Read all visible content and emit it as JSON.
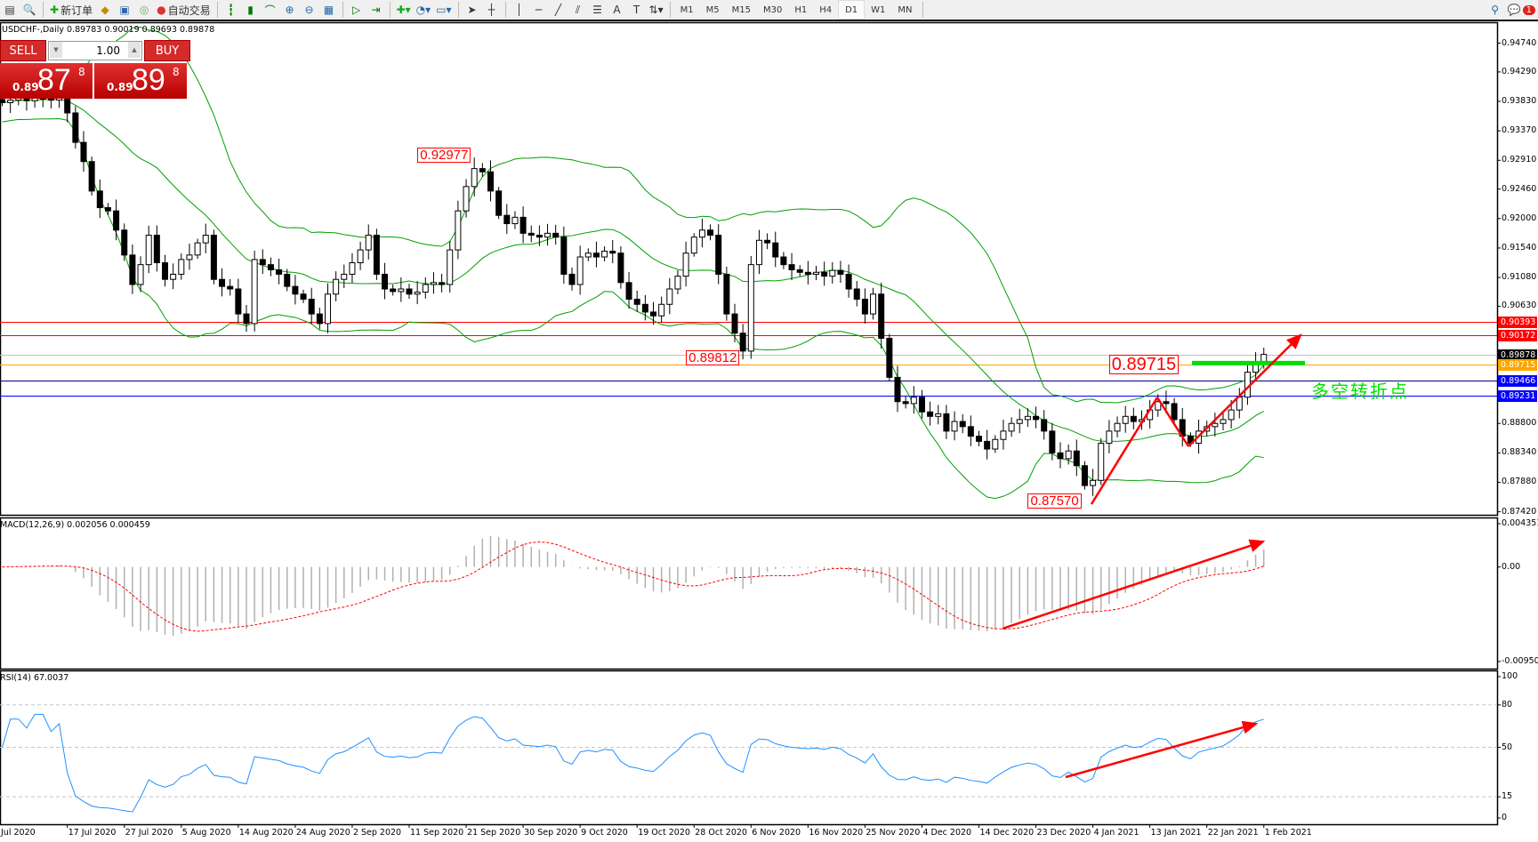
{
  "toolbar": {
    "new_order": "新订单",
    "auto_trading": "自动交易",
    "timeframes": [
      "M1",
      "M5",
      "M15",
      "M30",
      "H1",
      "H4",
      "D1",
      "W1",
      "MN"
    ],
    "active_timeframe": "D1",
    "notification_count": "1"
  },
  "chart": {
    "title": "USDCHF-,Daily 0.89783 0.90019 0.89693 0.89878"
  },
  "trade_panel": {
    "sell": "SELL",
    "buy": "BUY",
    "volume": "1.00",
    "sell_prefix": "0.89",
    "sell_big": "87",
    "sell_sup": "8",
    "buy_prefix": "0.89",
    "buy_big": "89",
    "buy_sup": "8"
  },
  "colors": {
    "bull": "#ffffff",
    "bear": "#000000",
    "bands": "#00a000",
    "macd_hist": "#b0b0b0",
    "macd_signal": "#ff0000",
    "rsi": "#1e90ff",
    "arrow": "#ff0000"
  },
  "chart_data": {
    "type": "candlestick",
    "symbol": "USDCHF-",
    "timeframe": "Daily",
    "price_ticks": [
      "0.94740",
      "0.94290",
      "0.93830",
      "0.93370",
      "0.92910",
      "0.92460",
      "0.92000",
      "0.91540",
      "0.91080",
      "0.90630",
      "0.88800",
      "0.88340",
      "0.87880",
      "0.87420"
    ],
    "ylim": [
      0.8742,
      0.9474
    ],
    "close": [
      0.9381,
      0.9385,
      0.9388,
      0.9384,
      0.9388,
      0.9388,
      0.9385,
      0.9388,
      0.9365,
      0.9319,
      0.9289,
      0.9243,
      0.9217,
      0.9212,
      0.9182,
      0.9143,
      0.9097,
      0.9128,
      0.9174,
      0.9131,
      0.9105,
      0.9113,
      0.9136,
      0.9143,
      0.9162,
      0.9174,
      0.9105,
      0.9094,
      0.909,
      0.9051,
      0.9036,
      0.9136,
      0.9128,
      0.912,
      0.9113,
      0.9094,
      0.9082,
      0.9074,
      0.9051,
      0.9036,
      0.9082,
      0.9105,
      0.9113,
      0.9131,
      0.9151,
      0.9174,
      0.9113,
      0.909,
      0.9086,
      0.909,
      0.9082,
      0.9085,
      0.9097,
      0.91,
      0.9097,
      0.9151,
      0.9212,
      0.925,
      0.9278,
      0.9273,
      0.9243,
      0.9205,
      0.9192,
      0.9202,
      0.9177,
      0.9174,
      0.9171,
      0.9177,
      0.9171,
      0.9113,
      0.9097,
      0.914,
      0.9146,
      0.914,
      0.9149,
      0.9146,
      0.91,
      0.9074,
      0.9066,
      0.9054,
      0.9048,
      0.9066,
      0.909,
      0.911,
      0.9146,
      0.9171,
      0.9182,
      0.9174,
      0.9113,
      0.9051,
      0.9021,
      0.8993,
      0.9128,
      0.9166,
      0.9162,
      0.914,
      0.9128,
      0.912,
      0.9116,
      0.9113,
      0.9116,
      0.911,
      0.9119,
      0.9113,
      0.909,
      0.9074,
      0.9051,
      0.9082,
      0.9013,
      0.8952,
      0.8914,
      0.8911,
      0.8921,
      0.8898,
      0.8891,
      0.8895,
      0.8868,
      0.8883,
      0.8875,
      0.886,
      0.8852,
      0.884,
      0.8855,
      0.8868,
      0.888,
      0.8886,
      0.8891,
      0.8886,
      0.8868,
      0.8834,
      0.8825,
      0.8837,
      0.8814,
      0.8783,
      0.8791,
      0.8849,
      0.8868,
      0.888,
      0.8891,
      0.8883,
      0.8886,
      0.8901,
      0.8914,
      0.8911,
      0.8886,
      0.886,
      0.8849,
      0.8868,
      0.8875,
      0.888,
      0.8886,
      0.8901,
      0.8921,
      0.896,
      0.8975,
      0.89878
    ],
    "horizontal_lines": [
      {
        "price": "0.90393",
        "color": "#ff0000"
      },
      {
        "price": "0.90172",
        "color": "#ff0000"
      },
      {
        "price": "0.89878",
        "color": "#000000",
        "line": "#c0c0c0"
      },
      {
        "price": "0.89715",
        "color": "#ffa500"
      },
      {
        "price": "0.89466",
        "color": "#0000ff",
        "line": "#000080"
      },
      {
        "price": "0.89231",
        "color": "#0000ff"
      }
    ],
    "annotations": [
      {
        "text": "0.92977",
        "bar": 58,
        "price": 0.9298
      },
      {
        "text": "0.89812",
        "bar": 91,
        "price": 0.8981
      },
      {
        "text": "0.87570",
        "bar": 133,
        "price": 0.8757
      },
      {
        "text": "0.89715",
        "bar": 142,
        "price": 0.8971,
        "large": true
      }
    ],
    "pivot_text": "多空转折点",
    "dates": [
      "Jul 2020",
      "17 Jul 2020",
      "27 Jul 2020",
      "5 Aug 2020",
      "14 Aug 2020",
      "24 Aug 2020",
      "2 Sep 2020",
      "11 Sep 2020",
      "21 Sep 2020",
      "30 Sep 2020",
      "9 Oct 2020",
      "19 Oct 2020",
      "28 Oct 2020",
      "6 Nov 2020",
      "16 Nov 2020",
      "25 Nov 2020",
      "4 Dec 2020",
      "14 Dec 2020",
      "23 Dec 2020",
      "4 Jan 2021",
      "13 Jan 2021",
      "22 Jan 2021",
      "1 Feb 2021"
    ],
    "bollinger": {
      "period": 20,
      "deviation": 2
    },
    "macd": {
      "label": "MACD(12,26,9) 0.002056 0.000459",
      "ticks": [
        "0.004351",
        "0.00",
        "-0.009504"
      ],
      "ylim": [
        -0.009504,
        0.004351
      ]
    },
    "rsi": {
      "label": "RSI(14) 67.0037",
      "ticks": [
        "100",
        "80",
        "50",
        "15",
        "0"
      ],
      "levels": [
        80,
        50,
        15
      ],
      "ylim": [
        0,
        100
      ]
    }
  }
}
